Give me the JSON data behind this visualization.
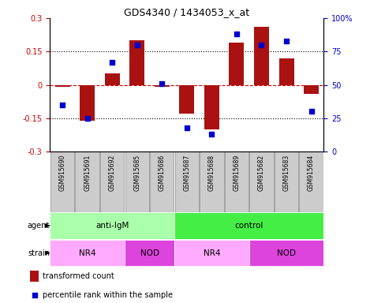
{
  "title": "GDS4340 / 1434053_x_at",
  "samples": [
    "GSM915690",
    "GSM915691",
    "GSM915692",
    "GSM915685",
    "GSM915686",
    "GSM915687",
    "GSM915688",
    "GSM915689",
    "GSM915682",
    "GSM915683",
    "GSM915684"
  ],
  "bar_values": [
    -0.01,
    -0.16,
    0.05,
    0.2,
    -0.01,
    -0.13,
    -0.2,
    0.19,
    0.26,
    0.12,
    -0.04
  ],
  "percentile_values": [
    35,
    25,
    67,
    80,
    51,
    18,
    13,
    88,
    80,
    83,
    30
  ],
  "ylim_left": [
    -0.3,
    0.3
  ],
  "ylim_right": [
    0,
    100
  ],
  "yticks_left": [
    -0.3,
    -0.15,
    0,
    0.15,
    0.3
  ],
  "yticks_right": [
    0,
    25,
    50,
    75,
    100
  ],
  "ytick_labels_right": [
    "0",
    "25",
    "50",
    "75",
    "100%"
  ],
  "hlines": [
    0.15,
    -0.15
  ],
  "bar_color": "#AA1111",
  "dot_color": "#0000CC",
  "agent_groups": [
    {
      "label": "anti-IgM",
      "start": 0,
      "end": 5,
      "color": "#AAFFAA"
    },
    {
      "label": "control",
      "start": 5,
      "end": 11,
      "color": "#44EE44"
    }
  ],
  "strain_groups": [
    {
      "label": "NR4",
      "start": 0,
      "end": 3,
      "color": "#FFAAFF"
    },
    {
      "label": "NOD",
      "start": 3,
      "end": 5,
      "color": "#DD44DD"
    },
    {
      "label": "NR4",
      "start": 5,
      "end": 8,
      "color": "#FFAAFF"
    },
    {
      "label": "NOD",
      "start": 8,
      "end": 11,
      "color": "#DD44DD"
    }
  ],
  "zero_line_color": "#CC0000",
  "tick_color_left": "#CC0000",
  "tick_color_right": "#0000CC",
  "sample_box_color": "#CCCCCC",
  "sample_box_edge": "#888888"
}
